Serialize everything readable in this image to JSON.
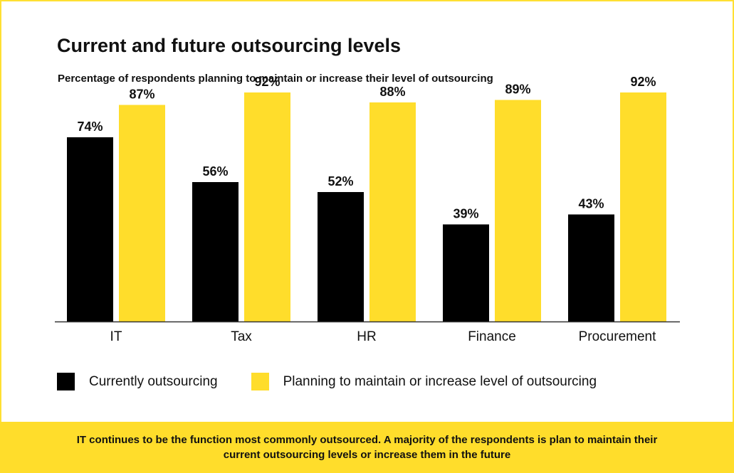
{
  "colors": {
    "current": "#000000",
    "planning": "#FFDD2B",
    "border": "#FFE033",
    "footer_bg": "#FFDD2B",
    "axis": "#333333"
  },
  "chart_data": {
    "type": "bar",
    "title": "Current and future outsourcing levels",
    "subtitle": "Percentage of respondents planning to maintain or increase their level of outsourcing",
    "categories": [
      "IT",
      "Tax",
      "HR",
      "Finance",
      "Procurement"
    ],
    "series": [
      {
        "name": "Currently outsourcing",
        "values": [
          74,
          56,
          52,
          39,
          43
        ],
        "color": "#000000"
      },
      {
        "name": "Planning to maintain or increase level of outsourcing",
        "values": [
          87,
          92,
          88,
          89,
          92
        ],
        "color": "#FFDD2B"
      }
    ],
    "value_suffix": "%",
    "ylim": [
      0,
      100
    ],
    "grid": false,
    "legend_position": "bottom-left",
    "xlabel": "",
    "ylabel": ""
  },
  "footer": {
    "text": "IT continues to be the function most commonly outsourced. A majority of the respondents is plan to maintain their current outsourcing levels or increase them in the future"
  }
}
